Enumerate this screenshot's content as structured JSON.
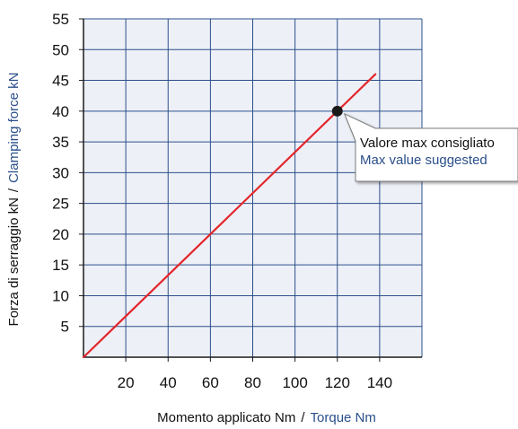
{
  "chart_data": {
    "type": "line",
    "xlabel": {
      "it": "Momento applicato Nm",
      "separator": "/",
      "en": "Torque Nm"
    },
    "ylabel": {
      "it": "Forza di serraggio kN",
      "separator": "/",
      "en": "Clamping force kN"
    },
    "xlim": [
      0,
      160
    ],
    "ylim": [
      0,
      55
    ],
    "x_ticks": [
      20,
      40,
      60,
      80,
      100,
      120,
      140
    ],
    "y_ticks": [
      5,
      10,
      15,
      20,
      25,
      30,
      35,
      40,
      45,
      50,
      55
    ],
    "grid": true,
    "series": [
      {
        "color": "#e3262b",
        "points": [
          [
            0,
            0
          ],
          [
            138,
            46
          ]
        ]
      }
    ],
    "marker": {
      "x": 120,
      "y": 40,
      "color": "#1a1a1a"
    },
    "annotation": {
      "line1": "Valore max consigliato",
      "line2": "Max value suggested"
    },
    "colors": {
      "plot_background": "#eef0f8",
      "grid": "#2b4f8a",
      "axis": "#1a1a1a"
    }
  }
}
